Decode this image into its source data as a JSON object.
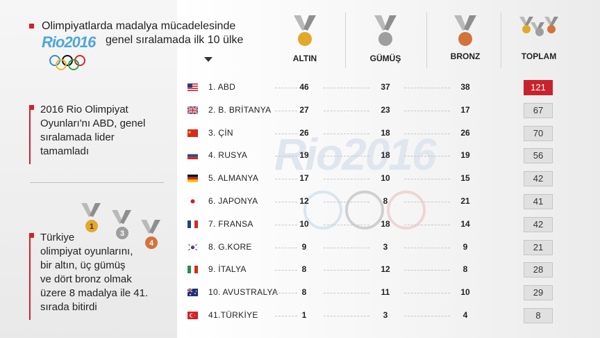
{
  "header": {
    "title_line1": "Olimpiyatlarda madalya mücadelesinde",
    "title_line2": "genel sıralamada ilk 10 ülke",
    "logo_text": "Rio2016"
  },
  "columns": {
    "gold": "ALTIN",
    "silver": "GÜMÜŞ",
    "bronze": "BRONZ",
    "total": "TOPLAM"
  },
  "side": {
    "note1": [
      "2016 Rio Olimpiyat",
      "Oyunları'nı ABD, genel",
      "sıralamada lider",
      "tamamladı"
    ],
    "note2": [
      "Türkiye",
      "olimpiyat oyunlarını,",
      "bir altın, üç gümüş",
      "ve dört bronz olmak",
      "üzere 8 madalya ile 41.",
      "sırada bitirdi"
    ],
    "medal_counts": [
      "1",
      "3",
      "4"
    ]
  },
  "watermark": "Rio2016",
  "colors": {
    "accent": "#c8232c",
    "gold": "#e3a82b",
    "silver": "#9e9e9e",
    "bronze": "#d3733a",
    "rio_blue": "#4ea6d9"
  },
  "rows": [
    {
      "country": "1. ABD",
      "flag": "usa-flag",
      "gold": "46",
      "silver": "37",
      "bronze": "38",
      "total": "121"
    },
    {
      "country": "2. B. BRİTANYA",
      "flag": "uk-flag",
      "gold": "27",
      "silver": "23",
      "bronze": "17",
      "total": "67"
    },
    {
      "country": "3. ÇİN",
      "flag": "china-flag",
      "gold": "26",
      "silver": "18",
      "bronze": "26",
      "total": "70"
    },
    {
      "country": "4. RUSYA",
      "flag": "russia-flag",
      "gold": "19",
      "silver": "18",
      "bronze": "19",
      "total": "56"
    },
    {
      "country": "5. ALMANYA",
      "flag": "germany-flag",
      "gold": "17",
      "silver": "10",
      "bronze": "15",
      "total": "42"
    },
    {
      "country": "6. JAPONYA",
      "flag": "japan-flag",
      "gold": "12",
      "silver": "8",
      "bronze": "21",
      "total": "41"
    },
    {
      "country": "7. FRANSA",
      "flag": "france-flag",
      "gold": "10",
      "silver": "18",
      "bronze": "14",
      "total": "42"
    },
    {
      "country": "8. G.KORE",
      "flag": "korea-flag",
      "gold": "9",
      "silver": "3",
      "bronze": "9",
      "total": "21"
    },
    {
      "country": "9. İTALYA",
      "flag": "italy-flag",
      "gold": "8",
      "silver": "12",
      "bronze": "8",
      "total": "28"
    },
    {
      "country": "10. AVUSTRALYA",
      "flag": "australia-flag",
      "gold": "8",
      "silver": "11",
      "bronze": "10",
      "total": "29"
    },
    {
      "country": "41.TÜRKİYE",
      "flag": "turkey-flag",
      "gold": "1",
      "silver": "3",
      "bronze": "4",
      "total": "8"
    }
  ]
}
